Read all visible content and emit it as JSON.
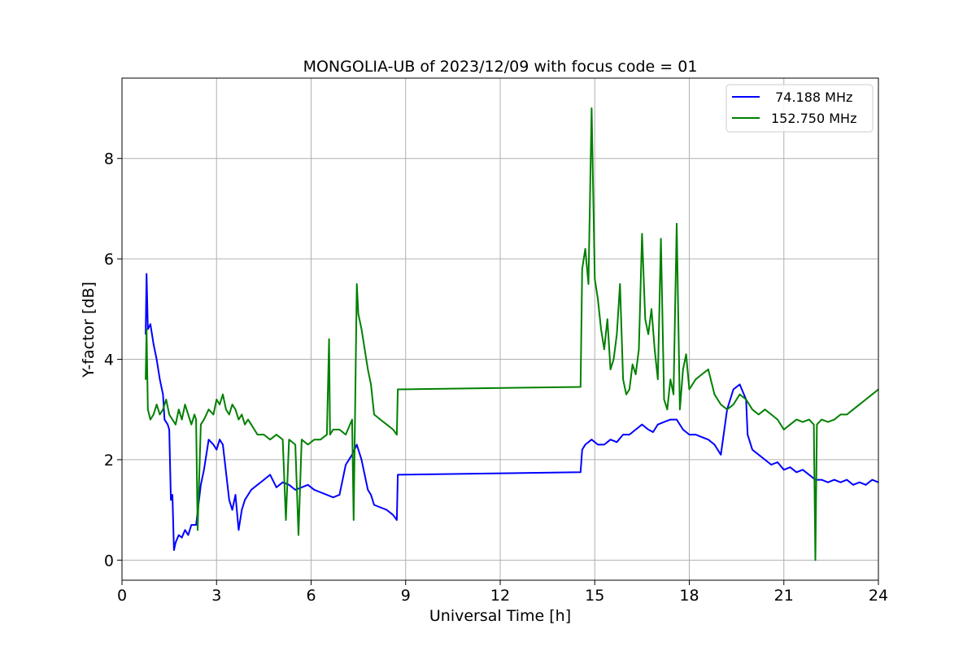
{
  "chart_data": {
    "type": "line",
    "title": "MONGOLIA-UB of 2023/12/09 with focus code = 01",
    "xlabel": "Universal Time [h]",
    "ylabel": "Y-factor [dB]",
    "xlim": [
      0,
      24
    ],
    "ylim": [
      -0.4,
      9.6
    ],
    "xticks": [
      0,
      3,
      6,
      9,
      12,
      15,
      18,
      21,
      24
    ],
    "yticks": [
      0,
      2,
      4,
      6,
      8
    ],
    "grid": true,
    "legend_position": "top-right",
    "series": [
      {
        "name": " 74.188 MHz",
        "color": "#0000ff",
        "x": [
          0.75,
          0.78,
          0.82,
          0.9,
          1.0,
          1.1,
          1.2,
          1.3,
          1.35,
          1.45,
          1.5,
          1.55,
          1.6,
          1.65,
          1.7,
          1.8,
          1.9,
          2.0,
          2.1,
          2.2,
          2.35,
          2.5,
          2.6,
          2.75,
          2.9,
          3.0,
          3.1,
          3.2,
          3.4,
          3.5,
          3.6,
          3.7,
          3.8,
          3.9,
          4.0,
          4.1,
          4.3,
          4.5,
          4.7,
          4.9,
          5.1,
          5.3,
          5.5,
          5.7,
          5.9,
          6.1,
          6.3,
          6.5,
          6.7,
          6.9,
          7.1,
          7.3,
          7.45,
          7.6,
          7.7,
          7.8,
          7.9,
          8.0,
          8.2,
          8.4,
          8.6,
          8.72,
          8.75,
          14.55,
          14.6,
          14.7,
          14.9,
          15.1,
          15.3,
          15.5,
          15.7,
          15.9,
          16.1,
          16.3,
          16.5,
          16.7,
          16.85,
          17.0,
          17.2,
          17.4,
          17.6,
          17.8,
          18.0,
          18.2,
          18.4,
          18.6,
          18.8,
          19.0,
          19.2,
          19.4,
          19.6,
          19.8,
          19.85,
          20.0,
          20.2,
          20.4,
          20.6,
          20.8,
          21.0,
          21.2,
          21.4,
          21.6,
          21.8,
          22.0,
          22.2,
          22.4,
          22.6,
          22.8,
          23.0,
          23.2,
          23.4,
          23.6,
          23.8,
          24.0
        ],
        "y": [
          4.5,
          5.7,
          4.6,
          4.7,
          4.3,
          4.0,
          3.6,
          3.3,
          2.8,
          2.7,
          2.6,
          1.2,
          1.3,
          0.2,
          0.35,
          0.5,
          0.45,
          0.6,
          0.5,
          0.7,
          0.7,
          1.5,
          1.8,
          2.4,
          2.3,
          2.2,
          2.4,
          2.3,
          1.2,
          1.0,
          1.3,
          0.6,
          1.0,
          1.2,
          1.3,
          1.4,
          1.5,
          1.6,
          1.7,
          1.45,
          1.55,
          1.5,
          1.4,
          1.45,
          1.5,
          1.4,
          1.35,
          1.3,
          1.25,
          1.3,
          1.9,
          2.1,
          2.3,
          2.0,
          1.7,
          1.4,
          1.3,
          1.1,
          1.05,
          1.0,
          0.9,
          0.8,
          1.7,
          1.75,
          2.2,
          2.3,
          2.4,
          2.3,
          2.3,
          2.4,
          2.35,
          2.5,
          2.5,
          2.6,
          2.7,
          2.6,
          2.55,
          2.7,
          2.75,
          2.8,
          2.8,
          2.6,
          2.5,
          2.5,
          2.45,
          2.4,
          2.3,
          2.1,
          3.0,
          3.4,
          3.5,
          3.2,
          2.5,
          2.2,
          2.1,
          2.0,
          1.9,
          1.95,
          1.8,
          1.85,
          1.75,
          1.8,
          1.7,
          1.6,
          1.6,
          1.55,
          1.6,
          1.55,
          1.6,
          1.5,
          1.55,
          1.5,
          1.6,
          1.55
        ]
      },
      {
        "name": "152.750 MHz",
        "color": "#008000",
        "x": [
          0.75,
          0.78,
          0.82,
          0.9,
          1.0,
          1.1,
          1.2,
          1.3,
          1.4,
          1.5,
          1.6,
          1.7,
          1.8,
          1.9,
          2.0,
          2.1,
          2.2,
          2.3,
          2.35,
          2.4,
          2.5,
          2.6,
          2.75,
          2.9,
          3.0,
          3.1,
          3.2,
          3.3,
          3.4,
          3.5,
          3.6,
          3.7,
          3.8,
          3.9,
          4.0,
          4.1,
          4.3,
          4.5,
          4.7,
          4.9,
          5.1,
          5.2,
          5.3,
          5.5,
          5.6,
          5.7,
          5.9,
          6.1,
          6.3,
          6.5,
          6.57,
          6.6,
          6.7,
          6.9,
          7.1,
          7.3,
          7.35,
          7.45,
          7.5,
          7.6,
          7.7,
          7.8,
          7.9,
          8.0,
          8.2,
          8.4,
          8.6,
          8.72,
          8.75,
          14.55,
          14.6,
          14.7,
          14.8,
          14.9,
          15.0,
          15.1,
          15.2,
          15.3,
          15.4,
          15.5,
          15.6,
          15.7,
          15.8,
          15.9,
          16.0,
          16.1,
          16.2,
          16.3,
          16.4,
          16.5,
          16.6,
          16.7,
          16.8,
          16.9,
          17.0,
          17.1,
          17.2,
          17.3,
          17.4,
          17.5,
          17.6,
          17.7,
          17.8,
          17.9,
          18.0,
          18.2,
          18.4,
          18.6,
          18.8,
          19.0,
          19.2,
          19.4,
          19.6,
          19.8,
          20.0,
          20.2,
          20.4,
          20.6,
          20.8,
          21.0,
          21.2,
          21.4,
          21.6,
          21.8,
          21.95,
          22.0,
          22.05,
          22.2,
          22.4,
          22.6,
          22.8,
          23.0,
          23.2,
          23.4,
          23.6,
          23.8,
          24.0
        ],
        "y": [
          3.6,
          4.6,
          3.0,
          2.8,
          2.9,
          3.1,
          2.9,
          3.0,
          3.2,
          2.9,
          2.8,
          2.7,
          3.0,
          2.8,
          3.1,
          2.9,
          2.7,
          2.9,
          2.8,
          0.6,
          2.7,
          2.8,
          3.0,
          2.9,
          3.2,
          3.1,
          3.3,
          3.0,
          2.9,
          3.1,
          3.0,
          2.8,
          2.9,
          2.7,
          2.8,
          2.7,
          2.5,
          2.5,
          2.4,
          2.5,
          2.4,
          0.8,
          2.4,
          2.3,
          0.5,
          2.4,
          2.3,
          2.4,
          2.4,
          2.5,
          4.4,
          2.5,
          2.6,
          2.6,
          2.5,
          2.8,
          0.8,
          5.5,
          4.9,
          4.6,
          4.2,
          3.8,
          3.5,
          2.9,
          2.8,
          2.7,
          2.6,
          2.5,
          3.4,
          3.45,
          5.8,
          6.2,
          5.5,
          9.0,
          5.6,
          5.2,
          4.6,
          4.2,
          4.8,
          3.8,
          4.0,
          4.5,
          5.5,
          3.6,
          3.3,
          3.4,
          3.9,
          3.7,
          4.2,
          6.5,
          4.8,
          4.5,
          5.0,
          4.2,
          3.6,
          6.4,
          3.2,
          3.0,
          3.6,
          3.3,
          6.7,
          3.0,
          3.8,
          4.1,
          3.4,
          3.6,
          3.7,
          3.8,
          3.3,
          3.1,
          3.0,
          3.1,
          3.3,
          3.2,
          3.0,
          2.9,
          3.0,
          2.9,
          2.8,
          2.6,
          2.7,
          2.8,
          2.75,
          2.8,
          2.7,
          0.0,
          2.7,
          2.8,
          2.75,
          2.8,
          2.9,
          2.9,
          3.0,
          3.1,
          3.2,
          3.3,
          3.4
        ]
      }
    ]
  }
}
